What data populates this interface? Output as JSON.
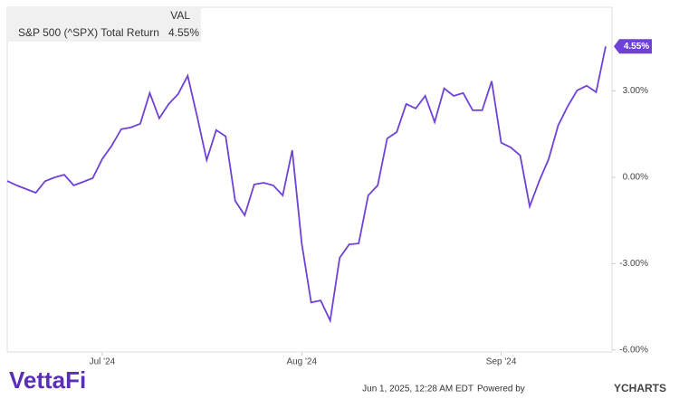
{
  "chart_data": {
    "type": "line",
    "legend_header": "VAL",
    "categories": [
      null,
      null,
      null,
      null,
      null,
      null,
      null,
      null,
      null,
      null,
      "Jul '24",
      null,
      null,
      null,
      null,
      null,
      null,
      null,
      null,
      null,
      null,
      null,
      null,
      null,
      null,
      null,
      null,
      null,
      null,
      null,
      null,
      "Aug '24",
      null,
      null,
      null,
      null,
      null,
      null,
      null,
      null,
      null,
      null,
      null,
      null,
      null,
      null,
      null,
      null,
      null,
      null,
      null,
      null,
      "Sep '24",
      null,
      null,
      null,
      null,
      null,
      null,
      null,
      null,
      null,
      null,
      null
    ],
    "series": [
      {
        "name": "S&P 500 (^SPX) Total Return",
        "color": "#6f42d6",
        "values": [
          -0.13,
          -0.28,
          -0.41,
          -0.54,
          -0.13,
          0,
          0.09,
          -0.28,
          -0.16,
          -0.03,
          0.63,
          1.1,
          1.67,
          1.73,
          1.86,
          2.93,
          2.05,
          2.55,
          2.9,
          3.53,
          2.11,
          0.6,
          1.64,
          1.42,
          -0.82,
          -1.32,
          -0.25,
          -0.19,
          -0.28,
          -0.63,
          0.94,
          -2.3,
          -4.35,
          -4.28,
          -4.98,
          -2.8,
          -2.33,
          -2.3,
          -0.63,
          -0.28,
          1.35,
          1.57,
          2.55,
          2.39,
          2.83,
          1.92,
          3.09,
          2.83,
          2.93,
          2.33,
          2.33,
          3.34,
          1.2,
          1.04,
          0.76,
          -1.01,
          -0.13,
          0.63,
          1.8,
          2.46,
          3.02,
          3.18,
          2.96,
          4.55
        ],
        "value_labels": [
          null,
          null,
          null,
          null,
          null,
          null,
          null,
          null,
          null,
          null,
          null,
          null,
          null,
          null,
          null,
          null,
          null,
          null,
          null,
          null,
          null,
          null,
          null,
          null,
          null,
          null,
          null,
          null,
          null,
          null,
          null,
          null,
          null,
          null,
          null,
          null,
          null,
          null,
          null,
          null,
          null,
          null,
          null,
          null,
          null,
          null,
          null,
          null,
          null,
          null,
          null,
          null,
          null,
          null,
          null,
          null,
          null,
          null,
          null,
          null,
          null,
          null,
          null,
          "4.55%"
        ]
      }
    ],
    "ylim": [
      -6.07,
      5.91
    ],
    "yticks": [
      {
        "value": 3,
        "label": "3.00%"
      },
      {
        "value": 0,
        "label": "0.00%"
      },
      {
        "value": -3,
        "label": "-3.00%"
      },
      {
        "value": -6,
        "label": "-6.00%"
      }
    ],
    "y_axis_side": "right"
  },
  "footer": {
    "logo": "VettaFi",
    "timestamp": "Jun 1, 2025, 12:28 AM EDT",
    "powered_by": "Powered by",
    "brand": "YCHARTS"
  }
}
